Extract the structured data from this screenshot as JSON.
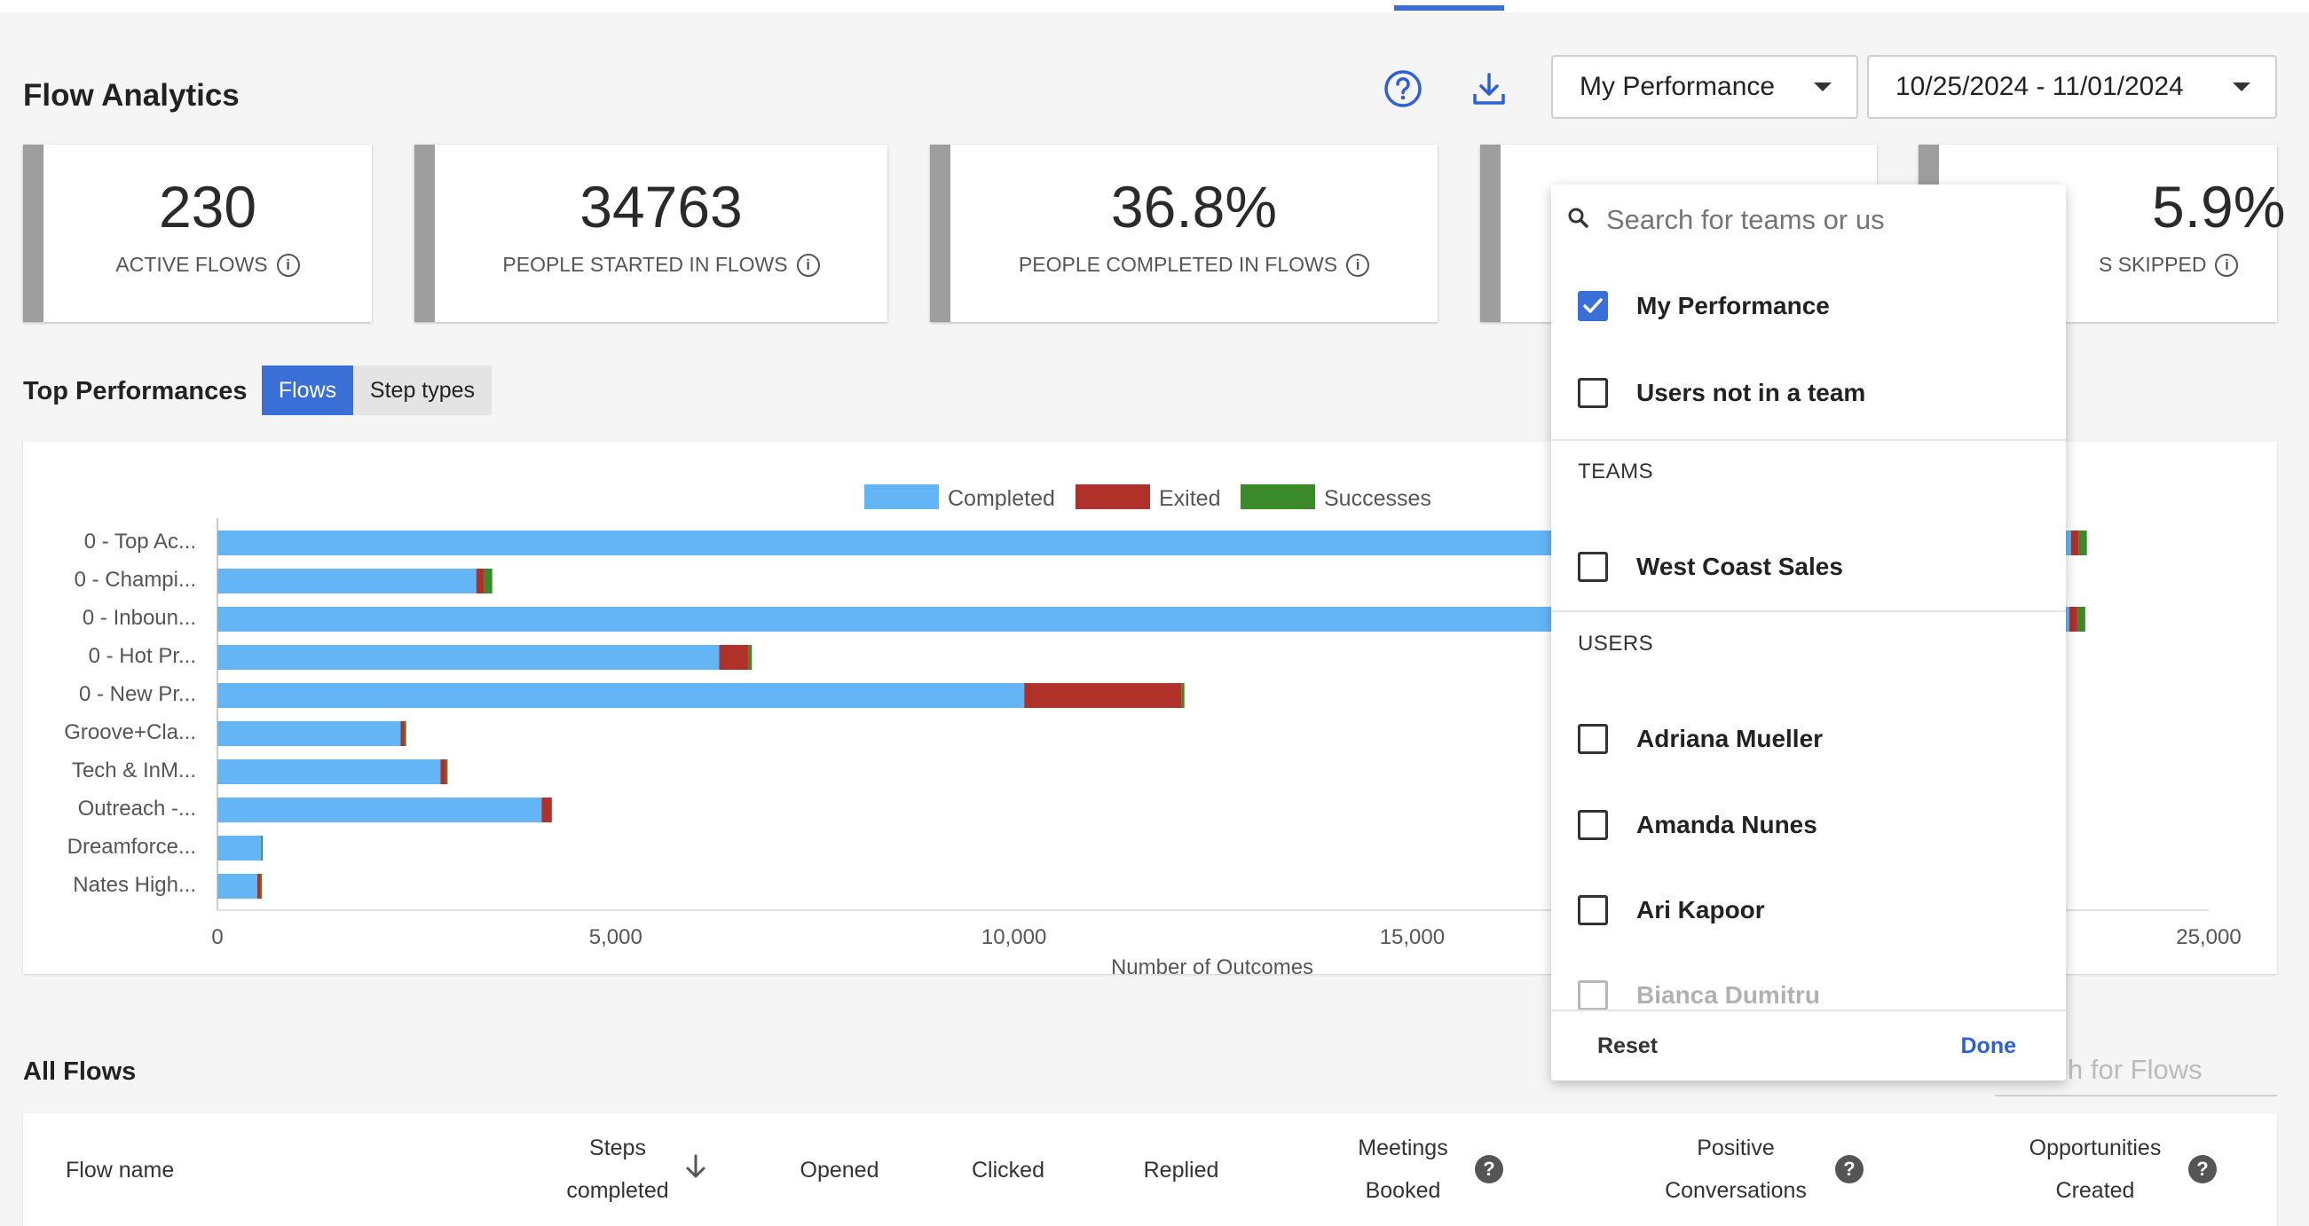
{
  "page": {
    "title": "Flow Analytics",
    "accent_color": "#3b6fd8"
  },
  "header": {
    "help_icon": "help-circle-icon",
    "download_icon": "download-icon",
    "performance_select": "My Performance",
    "date_range_select": "10/25/2024 - 11/01/2024"
  },
  "stats": [
    {
      "value": "230",
      "label": "ACTIVE FLOWS"
    },
    {
      "value": "34763",
      "label": "PEOPLE STARTED IN FLOWS"
    },
    {
      "value": "36.8%",
      "label": "PEOPLE COMPLETED IN FLOWS"
    },
    {
      "value": "",
      "label": ""
    },
    {
      "value": "5.9%",
      "label": "S SKIPPED"
    }
  ],
  "top_performances": {
    "label": "Top Performances",
    "tabs": [
      {
        "label": "Flows",
        "active": true
      },
      {
        "label": "Step types",
        "active": false
      }
    ]
  },
  "chart_data": {
    "type": "bar",
    "orientation": "horizontal",
    "stacked": true,
    "categories": [
      "0 - Top Ac...",
      "0 - Champi...",
      "0 - Inboun...",
      "0 - Hot Pr...",
      "0 - New Pr...",
      "Groove+Cla...",
      "Tech & InM...",
      "Outreach -...",
      "Dreamforce...",
      "Nates High..."
    ],
    "series": [
      {
        "name": "Completed",
        "color": "#64b5f6",
        "values": [
          23270,
          3250,
          23250,
          6300,
          10130,
          2300,
          2800,
          4070,
          550,
          500
        ]
      },
      {
        "name": "Exited",
        "color": "#b0302a",
        "values": [
          100,
          100,
          100,
          370,
          1970,
          50,
          70,
          120,
          0,
          40
        ]
      },
      {
        "name": "Successes",
        "color": "#3a8a2a",
        "values": [
          100,
          100,
          100,
          40,
          40,
          20,
          20,
          10,
          20,
          20
        ]
      }
    ],
    "xlabel": "Number of Outcomes",
    "ylabel": "",
    "xlim": [
      0,
      25000
    ],
    "xticks": [
      "0",
      "5,000",
      "10,000",
      "15,000",
      "25,000"
    ],
    "xtick_values": [
      0,
      5000,
      10000,
      15000,
      25000
    ],
    "legend": "top-center",
    "grid": false
  },
  "all_flows": {
    "label": "All Flows",
    "search_placeholder": "h for Flows",
    "columns": [
      {
        "line1": "Flow name",
        "line2": ""
      },
      {
        "line1": "Steps",
        "line2": "completed"
      },
      {
        "line1": "Opened",
        "line2": ""
      },
      {
        "line1": "Clicked",
        "line2": ""
      },
      {
        "line1": "Replied",
        "line2": ""
      },
      {
        "line1": "Meetings",
        "line2": "Booked"
      },
      {
        "line1": "Positive",
        "line2": "Conversations"
      },
      {
        "line1": "Opportunities",
        "line2": "Created"
      }
    ],
    "sort_icon": "arrow-down-icon",
    "help_icon": "question-icon"
  },
  "dropdown": {
    "search_placeholder": "Search for teams or us",
    "search_icon": "search-icon",
    "options": [
      {
        "label": "My Performance",
        "checked": true
      },
      {
        "label": "Users not in a team",
        "checked": false
      }
    ],
    "teams_header": "TEAMS",
    "teams": [
      {
        "label": "West Coast Sales",
        "checked": false
      }
    ],
    "users_header": "USERS",
    "users": [
      {
        "label": "Adriana Mueller",
        "checked": false
      },
      {
        "label": "Amanda Nunes",
        "checked": false
      },
      {
        "label": "Ari Kapoor",
        "checked": false
      },
      {
        "label": "Bianca Dumitru",
        "checked": false
      }
    ],
    "reset_label": "Reset",
    "done_label": "Done"
  }
}
